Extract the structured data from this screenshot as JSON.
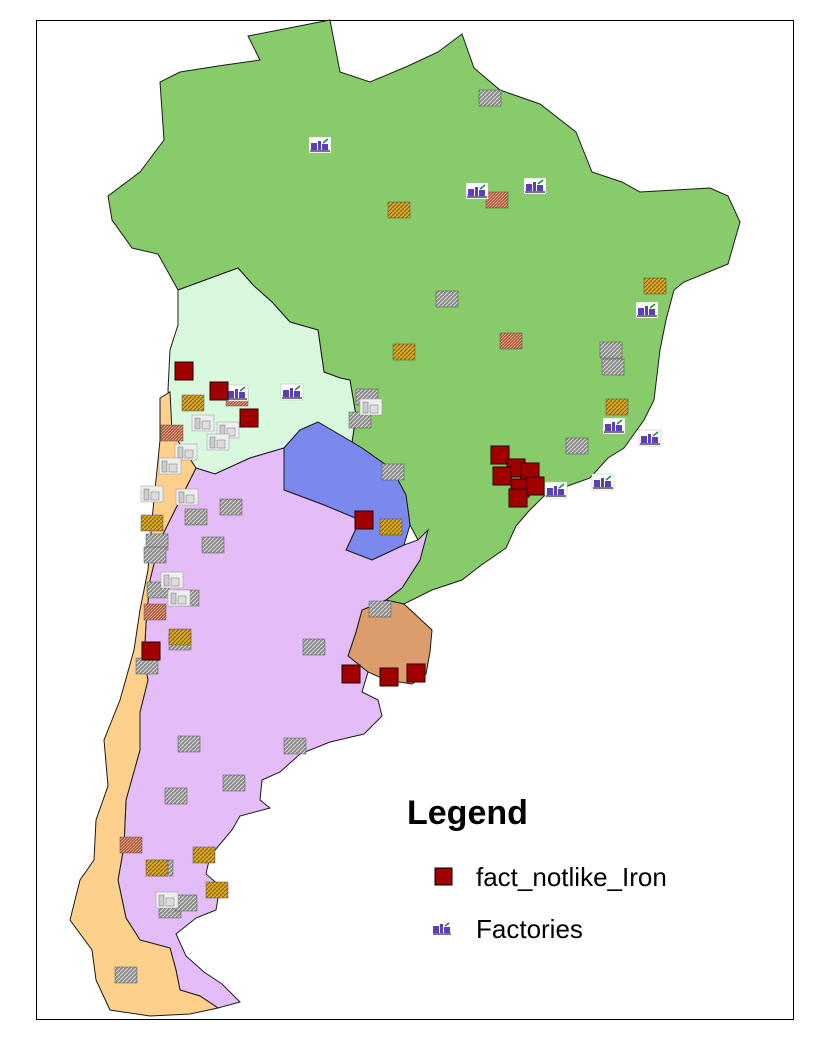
{
  "legend": {
    "title": "Legend",
    "items": [
      {
        "label": "fact_notlike_Iron",
        "symbol": "dark-red-square",
        "color": "#a00000"
      },
      {
        "label": "Factories",
        "symbol": "factory-icon",
        "color": "#5a3fb8"
      }
    ]
  },
  "colors": {
    "brazil": "#87cb6a",
    "bolivia": "#d9f9df",
    "paraguay": "#7b88ee",
    "argentina": "#e4bdf8",
    "chile": "#fdd08c",
    "uruguay": "#dc9d6c",
    "iron_marker": "#a00000",
    "factory_marker": "#5a3fb8"
  },
  "icons": [
    "dark-red-square",
    "factory-icon",
    "gray-rock-icon",
    "gold-mineral-icon",
    "brown-mineral-icon",
    "white-building-icon"
  ]
}
